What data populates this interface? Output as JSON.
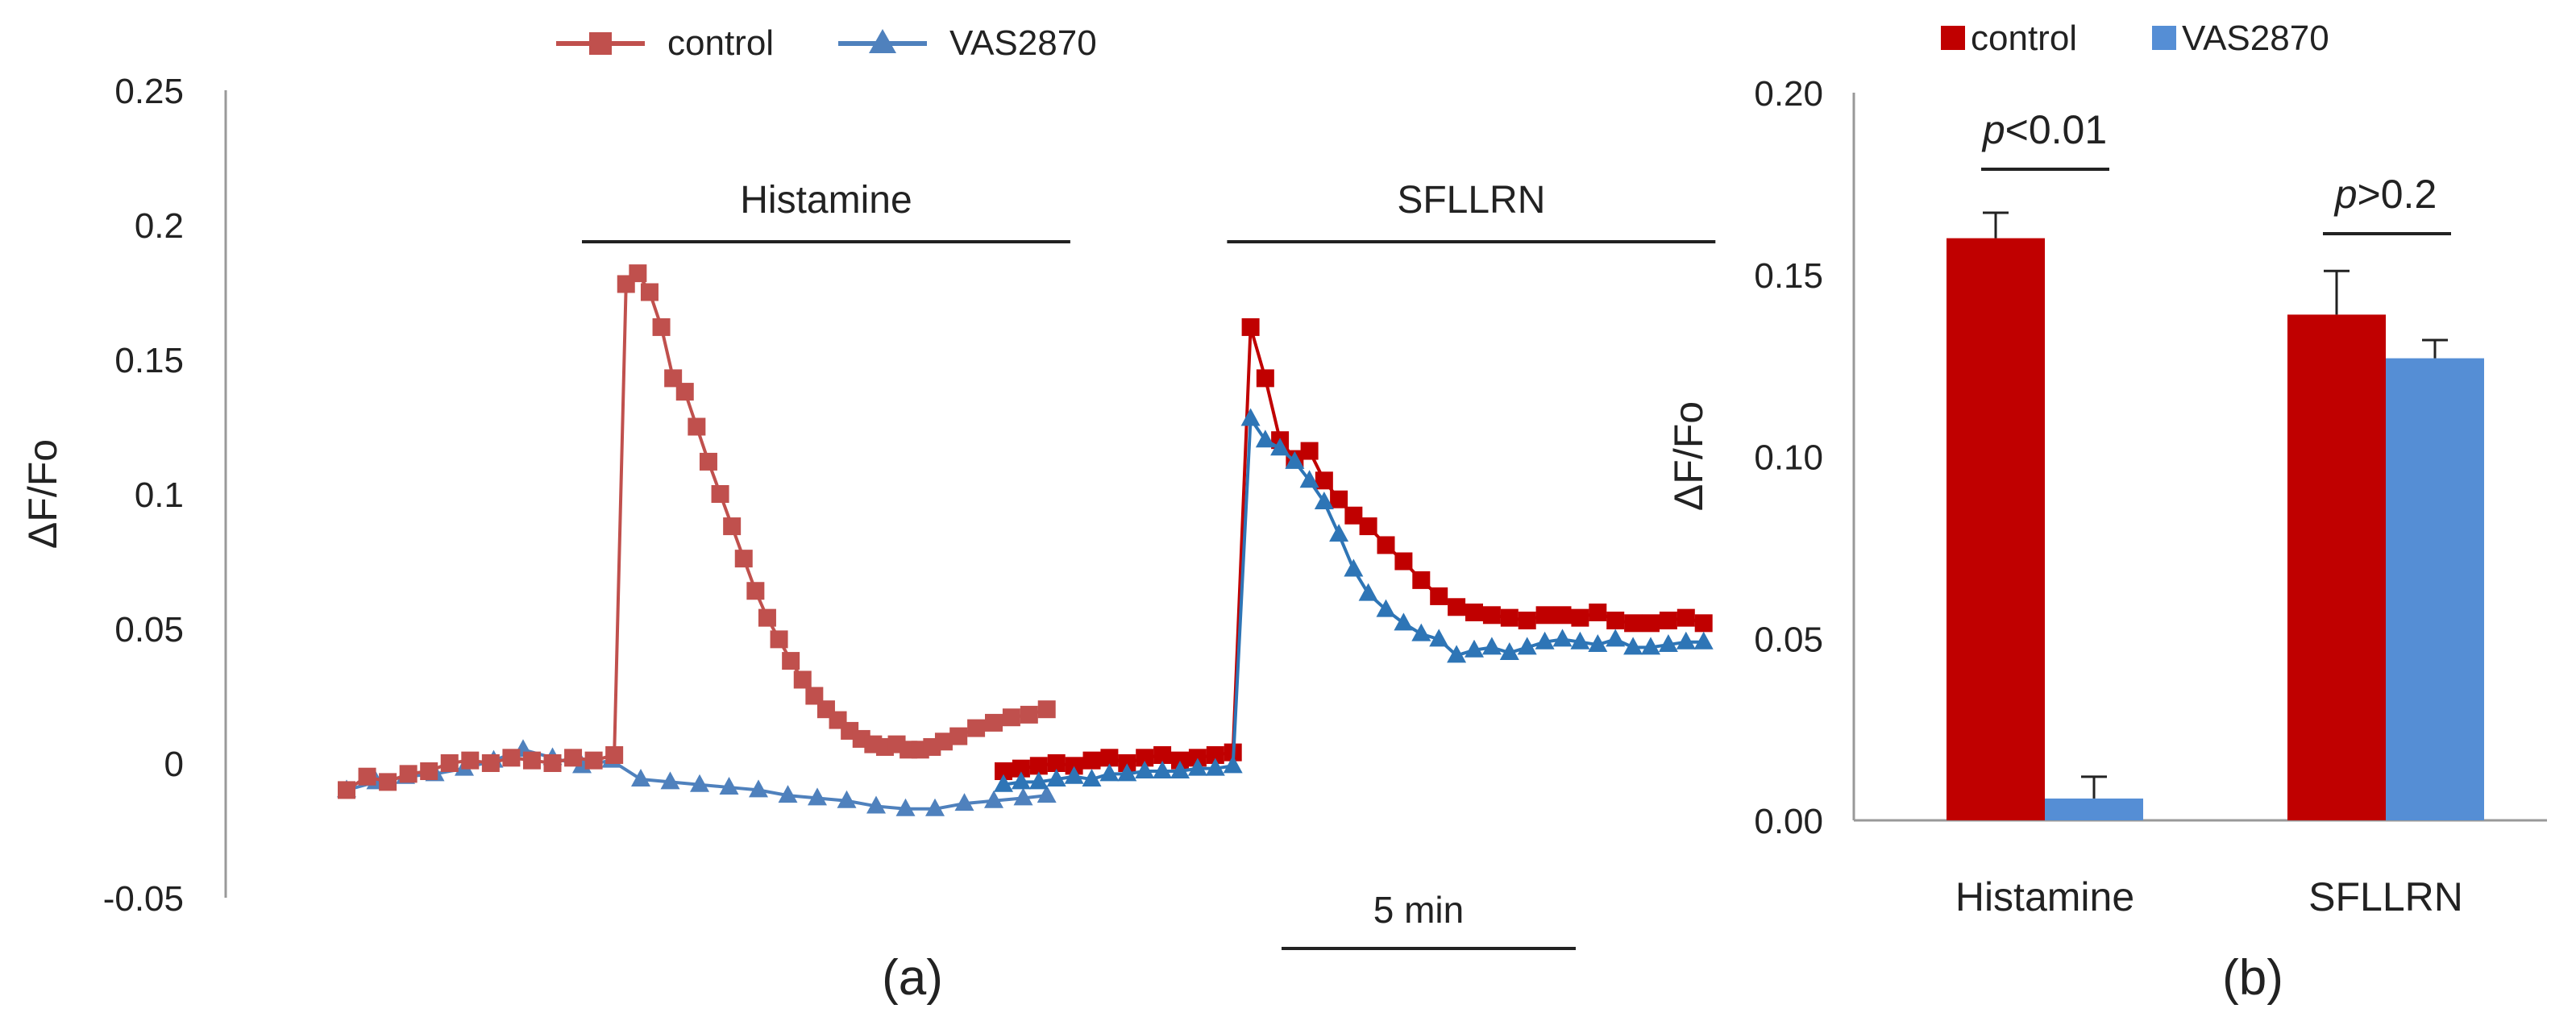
{
  "colors": {
    "control_line": "#c0504d",
    "vas_line": "#4f81bd",
    "sfllrn_control": "#c00000",
    "sfllrn_vas": "#2e75b6",
    "bar_control": "#c00000",
    "bar_vas": "#558ed5"
  },
  "chart_data": [
    {
      "type": "line",
      "ylabel": "ΔF/Fo",
      "ylim": [
        -0.05,
        0.25
      ],
      "yticks": [
        "-0.05",
        "0",
        "0.05",
        "0.1",
        "0.15",
        "0.2",
        "0.25"
      ],
      "yticks_values": [
        -0.05,
        0,
        0.05,
        0.1,
        0.15,
        0.2,
        0.25
      ],
      "legend": [
        "control",
        "VAS2870"
      ],
      "panel_label": "(a)",
      "scale_bar_label": "5 min",
      "scale_bar_minutes": 5,
      "x_unit": "min",
      "segments": [
        {
          "label": "Histamine",
          "stimulus_bar": [
            4.0,
            12.3
          ],
          "series": [
            {
              "name": "control",
              "marker": "square",
              "x": [
                0,
                0.35,
                0.7,
                1.05,
                1.4,
                1.75,
                2.1,
                2.45,
                2.8,
                3.15,
                3.5,
                3.85,
                4.2,
                4.55,
                4.75,
                4.95,
                5.15,
                5.35,
                5.55,
                5.75,
                5.95,
                6.15,
                6.35,
                6.55,
                6.75,
                6.95,
                7.15,
                7.35,
                7.55,
                7.75,
                7.95,
                8.15,
                8.35,
                8.55,
                8.75,
                8.95,
                9.15,
                9.35,
                9.55,
                9.75,
                9.95,
                10.15,
                10.4,
                10.7,
                11.0,
                11.3,
                11.6,
                11.9
              ],
              "values": [
                -0.01,
                -0.005,
                -0.007,
                -0.004,
                -0.003,
                0.0,
                0.001,
                0.0,
                0.002,
                0.001,
                0.0,
                0.002,
                0.001,
                0.003,
                0.178,
                0.182,
                0.175,
                0.162,
                0.143,
                0.138,
                0.125,
                0.112,
                0.1,
                0.088,
                0.076,
                0.064,
                0.054,
                0.046,
                0.038,
                0.031,
                0.025,
                0.02,
                0.016,
                0.012,
                0.009,
                0.007,
                0.006,
                0.007,
                0.005,
                0.005,
                0.006,
                0.008,
                0.01,
                0.013,
                0.015,
                0.017,
                0.018,
                0.02
              ]
            },
            {
              "name": "VAS2870",
              "marker": "triangle",
              "x": [
                0,
                0.5,
                1.0,
                1.5,
                2.0,
                2.5,
                3.0,
                3.5,
                4.0,
                4.5,
                5.0,
                5.5,
                6.0,
                6.5,
                7.0,
                7.5,
                8.0,
                8.5,
                9.0,
                9.5,
                10.0,
                10.5,
                11.0,
                11.5,
                11.9
              ],
              "values": [
                -0.01,
                -0.007,
                -0.005,
                -0.004,
                -0.002,
                0.001,
                0.005,
                0.002,
                -0.001,
                0.001,
                -0.006,
                -0.007,
                -0.008,
                -0.009,
                -0.01,
                -0.012,
                -0.013,
                -0.014,
                -0.016,
                -0.017,
                -0.017,
                -0.015,
                -0.014,
                -0.013,
                -0.012
              ]
            }
          ]
        },
        {
          "label": "SFLLRN",
          "stimulus_bar": [
            3.8,
            12.1
          ],
          "series": [
            {
              "name": "control",
              "marker": "square",
              "x": [
                0,
                0.3,
                0.6,
                0.9,
                1.2,
                1.5,
                1.8,
                2.1,
                2.4,
                2.7,
                3.0,
                3.3,
                3.6,
                3.9,
                4.2,
                4.45,
                4.7,
                4.95,
                5.2,
                5.45,
                5.7,
                5.95,
                6.2,
                6.5,
                6.8,
                7.1,
                7.4,
                7.7,
                8.0,
                8.3,
                8.6,
                8.9,
                9.2,
                9.5,
                9.8,
                10.1,
                10.4,
                10.7,
                11.0,
                11.3,
                11.6,
                11.9
              ],
              "values": [
                -0.003,
                -0.002,
                -0.001,
                0.0,
                -0.001,
                0.001,
                0.002,
                0.0,
                0.002,
                0.003,
                0.001,
                0.002,
                0.003,
                0.004,
                0.162,
                0.143,
                0.12,
                0.113,
                0.116,
                0.105,
                0.098,
                0.092,
                0.088,
                0.081,
                0.075,
                0.068,
                0.062,
                0.058,
                0.056,
                0.055,
                0.054,
                0.053,
                0.055,
                0.055,
                0.054,
                0.056,
                0.053,
                0.052,
                0.052,
                0.053,
                0.054,
                0.052
              ]
            },
            {
              "name": "VAS2870",
              "marker": "triangle",
              "x": [
                0,
                0.3,
                0.6,
                0.9,
                1.2,
                1.5,
                1.8,
                2.1,
                2.4,
                2.7,
                3.0,
                3.3,
                3.6,
                3.9,
                4.2,
                4.45,
                4.7,
                4.95,
                5.2,
                5.45,
                5.7,
                5.95,
                6.2,
                6.5,
                6.8,
                7.1,
                7.4,
                7.7,
                8.0,
                8.3,
                8.6,
                8.9,
                9.2,
                9.5,
                9.8,
                10.1,
                10.4,
                10.7,
                11.0,
                11.3,
                11.6,
                11.9
              ],
              "values": [
                -0.008,
                -0.007,
                -0.007,
                -0.006,
                -0.005,
                -0.006,
                -0.004,
                -0.004,
                -0.003,
                -0.003,
                -0.003,
                -0.002,
                -0.002,
                -0.001,
                0.128,
                0.12,
                0.117,
                0.112,
                0.105,
                0.097,
                0.085,
                0.072,
                0.063,
                0.057,
                0.052,
                0.048,
                0.046,
                0.04,
                0.042,
                0.043,
                0.041,
                0.043,
                0.045,
                0.046,
                0.045,
                0.044,
                0.046,
                0.043,
                0.043,
                0.044,
                0.045,
                0.045
              ]
            }
          ]
        }
      ]
    },
    {
      "type": "bar",
      "ylabel": "ΔF/Fo",
      "ylim": [
        0,
        0.2
      ],
      "yticks": [
        "0.00",
        "0.05",
        "0.10",
        "0.15",
        "0.20"
      ],
      "yticks_values": [
        0,
        0.05,
        0.1,
        0.15,
        0.2
      ],
      "categories": [
        "Histamine",
        "SFLLRN"
      ],
      "series": [
        {
          "name": "control",
          "values": [
            0.16,
            0.139
          ],
          "errors": [
            0.007,
            0.012
          ]
        },
        {
          "name": "VAS2870",
          "values": [
            0.006,
            0.127
          ],
          "errors": [
            0.006,
            0.005
          ]
        }
      ],
      "legend": [
        "control",
        "VAS2870"
      ],
      "panel_label": "(b)",
      "annotations": [
        {
          "category": "Histamine",
          "prefix": "p",
          "text": "<0.01"
        },
        {
          "category": "SFLLRN",
          "prefix": "p",
          "text": ">0.2"
        }
      ]
    }
  ]
}
